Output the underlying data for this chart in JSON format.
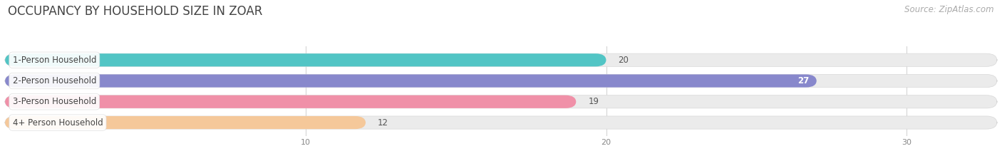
{
  "title": "OCCUPANCY BY HOUSEHOLD SIZE IN ZOAR",
  "source": "Source: ZipAtlas.com",
  "categories": [
    "1-Person Household",
    "2-Person Household",
    "3-Person Household",
    "4+ Person Household"
  ],
  "values": [
    20,
    27,
    19,
    12
  ],
  "bar_colors": [
    "#52C5C5",
    "#8888CC",
    "#F090A8",
    "#F5C89A"
  ],
  "value_inside": [
    false,
    true,
    false,
    false
  ],
  "xlim_max": 33,
  "xticks": [
    10,
    20,
    30
  ],
  "title_fontsize": 12,
  "source_fontsize": 8.5,
  "label_fontsize": 8.5,
  "value_fontsize": 8.5,
  "bar_height": 0.62,
  "background_color": "#ffffff",
  "bar_bg_color": "#ebebeb"
}
